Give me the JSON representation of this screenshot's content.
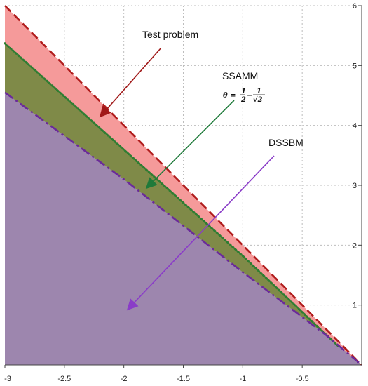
{
  "chart_data": {
    "type": "area",
    "title": "",
    "xlabel": "",
    "ylabel": "",
    "xlim": [
      -3,
      0
    ],
    "ylim": [
      0,
      6
    ],
    "grid": true,
    "x_ticks": [
      "-3",
      "-2.5",
      "-2",
      "-1.5",
      "-1",
      "-0.5"
    ],
    "y_ticks": [
      "1",
      "2",
      "3",
      "4",
      "5",
      "6"
    ],
    "series": [
      {
        "name": "Test problem",
        "style": "dashed",
        "line_color": "#b01c1c",
        "fill_color": "#f59a9a",
        "x": [
          -3,
          0
        ],
        "y": [
          6,
          0
        ]
      },
      {
        "name": "SSAMM",
        "style": "dotted",
        "line_color": "#2e7d32",
        "fill_color": "#7f8a48",
        "x": [
          -3,
          -1,
          -0.2
        ],
        "y": [
          5.37,
          1.82,
          0.32
        ]
      },
      {
        "name": "DSSBM",
        "style": "dash-dot",
        "line_color": "#6a2a9a",
        "fill_color": "#9d86ae",
        "x": [
          -3,
          -2,
          -1,
          -0.3,
          0
        ],
        "y": [
          4.55,
          3.1,
          1.55,
          0.5,
          0
        ]
      }
    ],
    "annotations": [
      {
        "text": "Test problem",
        "arrow_color": "#a01818"
      },
      {
        "text": "SSAMM",
        "arrow_color": "#1f7a3a"
      },
      {
        "text": "DSSBM",
        "arrow_color": "#8a3cc8"
      }
    ],
    "theta_formula": {
      "lhs": "θ =",
      "a_num": "1",
      "a_den": "2",
      "minus": "−",
      "b_num": "1",
      "b_den": "√2"
    }
  }
}
